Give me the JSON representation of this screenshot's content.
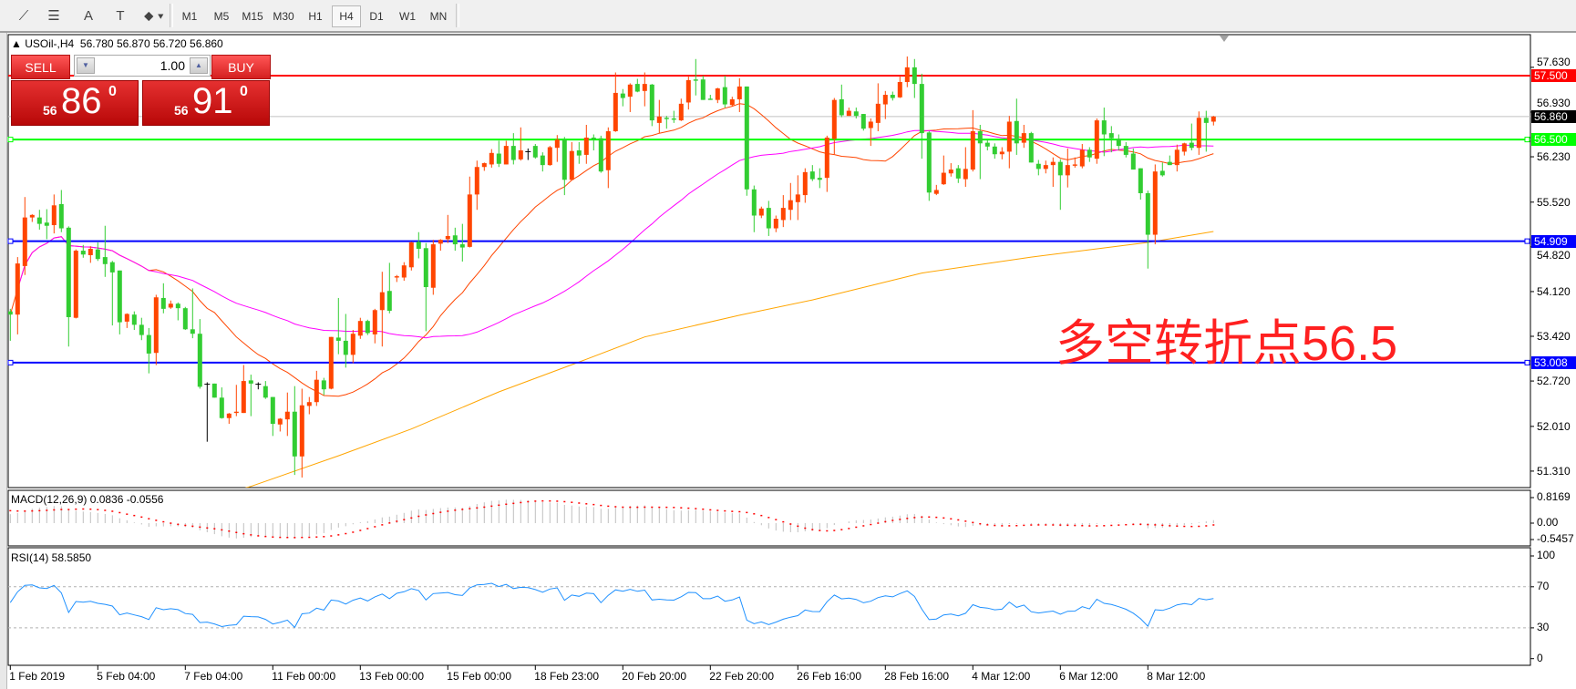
{
  "toolbar": {
    "tools": [
      {
        "icon": "line-studies-icon",
        "glyph": "⟋"
      },
      {
        "icon": "fibonacci-icon",
        "glyph": "☰"
      },
      {
        "icon": "text-icon",
        "glyph": "A"
      },
      {
        "icon": "text-label-icon",
        "glyph": "T"
      },
      {
        "icon": "arrows-icon",
        "glyph": "⬥"
      }
    ],
    "timeframes": [
      "M1",
      "M5",
      "M15",
      "M30",
      "H1",
      "H4",
      "D1",
      "W1",
      "MN"
    ],
    "active_timeframe": "H4"
  },
  "chart": {
    "symbol_header": "USOil-,H4",
    "ohlc_header": "56.780 56.870 56.720 56.860",
    "annotation": "多空转折点56.5",
    "colors": {
      "bull": "#ff4500",
      "bear": "#32cd32",
      "doji": "#000000",
      "ma_fast": "#ff4500",
      "ma_mid": "#ff00ff",
      "ma_slow": "#ffa500",
      "macd_hist": "#c0c0c0",
      "macd_signal": "#ff0000",
      "rsi": "#1e90ff"
    }
  },
  "trade": {
    "sell_label": "SELL",
    "buy_label": "BUY",
    "volume": "1.00",
    "sell_price": {
      "small": "56",
      "big": "86",
      "sup": "0"
    },
    "buy_price": {
      "small": "56",
      "big": "91",
      "sup": "0"
    }
  },
  "chart_data": [
    {
      "type": "candlestick",
      "price_axis_ticks": [
        "57.630",
        "56.930",
        "56.230",
        "55.520",
        "54.820",
        "54.120",
        "53.420",
        "52.720",
        "52.010",
        "51.310"
      ],
      "time_axis_labels": [
        "1 Feb 2019",
        "5 Feb 04:00",
        "7 Feb 04:00",
        "11 Feb 00:00",
        "13 Feb 00:00",
        "15 Feb 00:00",
        "18 Feb 23:00",
        "20 Feb 20:00",
        "22 Feb 20:00",
        "26 Feb 16:00",
        "28 Feb 16:00",
        "4 Mar 12:00",
        "6 Mar 12:00",
        "8 Mar 12:00"
      ],
      "ylim": [
        51.0,
        57.9
      ],
      "current_price": {
        "value": 56.86,
        "label": "56.860",
        "color": "#000000"
      },
      "horizontal_lines": [
        {
          "value": 57.5,
          "label": "57.500",
          "color": "#ff0000"
        },
        {
          "value": 56.5,
          "label": "56.500",
          "color": "#00ff00"
        },
        {
          "value": 54.909,
          "label": "54.909",
          "color": "#0000ff"
        },
        {
          "value": 53.008,
          "label": "53.008",
          "color": "#0000ff"
        }
      ],
      "ma_slow_points": [
        [
          30,
          50.98
        ],
        [
          33,
          51.07
        ],
        [
          45,
          51.55
        ],
        [
          55,
          51.97
        ],
        [
          67,
          52.55
        ],
        [
          79,
          53.06
        ],
        [
          87,
          53.41
        ],
        [
          100,
          53.75
        ],
        [
          110,
          53.99
        ],
        [
          125,
          54.41
        ],
        [
          140,
          54.66
        ],
        [
          156,
          54.89
        ],
        [
          165,
          55.06
        ]
      ],
      "ohlc": [
        [
          53.81,
          53.85,
          53.35,
          53.76
        ],
        [
          53.76,
          54.66,
          53.45,
          54.56
        ],
        [
          54.52,
          55.6,
          54.38,
          55.28
        ],
        [
          55.28,
          55.33,
          55.21,
          55.32
        ],
        [
          55.28,
          55.4,
          55.09,
          55.18
        ],
        [
          55.2,
          55.41,
          54.94,
          55.15
        ],
        [
          55.16,
          55.64,
          55.03,
          55.47
        ],
        [
          55.49,
          55.71,
          55.05,
          55.11
        ],
        [
          55.12,
          55.14,
          53.26,
          53.72
        ],
        [
          53.71,
          54.78,
          53.7,
          54.76
        ],
        [
          54.76,
          54.85,
          54.65,
          54.7
        ],
        [
          54.69,
          54.83,
          54.57,
          54.79
        ],
        [
          54.78,
          54.89,
          54.6,
          54.63
        ],
        [
          54.66,
          55.15,
          54.35,
          54.55
        ],
        [
          54.58,
          54.6,
          53.59,
          54.42
        ],
        [
          54.45,
          54.45,
          53.45,
          53.64
        ],
        [
          53.65,
          53.78,
          53.55,
          53.77
        ],
        [
          53.76,
          53.81,
          53.52,
          53.6
        ],
        [
          53.6,
          53.71,
          53.36,
          53.44
        ],
        [
          53.44,
          53.55,
          52.84,
          53.15
        ],
        [
          53.16,
          54.07,
          52.97,
          54.03
        ],
        [
          54.02,
          54.25,
          53.78,
          53.85
        ],
        [
          53.87,
          53.98,
          53.85,
          53.93
        ],
        [
          53.93,
          53.95,
          53.67,
          53.86
        ],
        [
          53.86,
          53.88,
          53.52,
          53.53
        ],
        [
          53.53,
          54.17,
          53.39,
          53.46
        ],
        [
          53.46,
          53.69,
          52.6,
          52.63
        ],
        [
          52.67,
          52.7,
          51.77,
          52.66
        ],
        [
          52.68,
          52.68,
          52.46,
          52.46
        ],
        [
          52.46,
          52.62,
          52.13,
          52.14
        ],
        [
          52.14,
          52.22,
          52.05,
          52.21
        ],
        [
          52.22,
          52.66,
          52.17,
          52.24
        ],
        [
          52.22,
          52.97,
          52.22,
          52.72
        ],
        [
          52.73,
          52.82,
          52.17,
          52.68
        ],
        [
          52.67,
          52.7,
          52.59,
          52.66
        ],
        [
          52.64,
          52.72,
          52.44,
          52.46
        ],
        [
          52.47,
          52.47,
          51.86,
          52.05
        ],
        [
          52.04,
          52.14,
          51.93,
          52.13
        ],
        [
          52.12,
          52.54,
          51.86,
          52.24
        ],
        [
          52.24,
          52.64,
          51.25,
          51.54
        ],
        [
          51.54,
          52.6,
          51.21,
          52.34
        ],
        [
          52.33,
          52.47,
          52.2,
          52.39
        ],
        [
          52.39,
          52.88,
          52.33,
          52.74
        ],
        [
          52.73,
          52.77,
          52.5,
          52.59
        ],
        [
          52.6,
          53.41,
          52.59,
          53.41
        ],
        [
          53.4,
          54.02,
          53.14,
          53.35
        ],
        [
          53.35,
          53.77,
          52.93,
          53.13
        ],
        [
          53.13,
          53.52,
          53.0,
          53.46
        ],
        [
          53.43,
          53.71,
          53.38,
          53.66
        ],
        [
          53.66,
          53.68,
          53.44,
          53.47
        ],
        [
          53.45,
          53.85,
          53.31,
          53.83
        ],
        [
          53.83,
          54.43,
          53.26,
          54.11
        ],
        [
          54.13,
          54.57,
          53.78,
          53.82
        ],
        [
          54.34,
          54.38,
          54.27,
          54.36
        ],
        [
          54.34,
          54.58,
          54.29,
          54.53
        ],
        [
          54.5,
          54.9,
          54.45,
          54.89
        ],
        [
          54.9,
          55.05,
          54.64,
          54.79
        ],
        [
          54.8,
          54.88,
          53.5,
          54.19
        ],
        [
          54.18,
          54.93,
          54.07,
          54.86
        ],
        [
          54.87,
          54.94,
          54.76,
          54.93
        ],
        [
          54.94,
          55.32,
          54.88,
          54.99
        ],
        [
          55.0,
          55.12,
          54.76,
          54.86
        ],
        [
          54.86,
          55.18,
          54.59,
          54.81
        ],
        [
          54.82,
          55.92,
          54.81,
          55.64
        ],
        [
          55.64,
          56.17,
          55.4,
          56.07
        ],
        [
          56.07,
          56.14,
          56.01,
          56.13
        ],
        [
          56.11,
          56.35,
          56.06,
          56.29
        ],
        [
          56.28,
          56.48,
          56.07,
          56.12
        ],
        [
          56.11,
          56.48,
          56.11,
          56.4
        ],
        [
          56.4,
          56.6,
          56.11,
          56.18
        ],
        [
          56.19,
          56.69,
          56.17,
          56.33
        ],
        [
          56.31,
          56.36,
          56.18,
          56.31
        ],
        [
          56.4,
          56.43,
          56.2,
          56.22
        ],
        [
          56.25,
          56.3,
          56.0,
          56.1
        ],
        [
          56.1,
          56.4,
          56.09,
          56.38
        ],
        [
          56.37,
          56.57,
          56.15,
          56.5
        ],
        [
          56.5,
          56.54,
          55.63,
          55.87
        ],
        [
          55.87,
          56.46,
          55.86,
          56.32
        ],
        [
          56.33,
          56.46,
          56.12,
          56.25
        ],
        [
          56.26,
          56.73,
          56.12,
          56.53
        ],
        [
          56.53,
          56.58,
          56.33,
          56.5
        ],
        [
          56.52,
          56.56,
          55.98,
          56.0
        ],
        [
          56.02,
          56.69,
          55.74,
          56.63
        ],
        [
          56.63,
          57.55,
          56.62,
          57.23
        ],
        [
          57.22,
          57.29,
          57.02,
          57.15
        ],
        [
          57.17,
          57.38,
          56.93,
          57.36
        ],
        [
          57.37,
          57.45,
          57.24,
          57.25
        ],
        [
          57.26,
          57.55,
          57.02,
          57.37
        ],
        [
          57.36,
          57.37,
          56.71,
          56.8
        ],
        [
          56.76,
          57.12,
          56.6,
          56.86
        ],
        [
          56.84,
          56.87,
          56.67,
          56.82
        ],
        [
          56.83,
          56.95,
          56.76,
          56.81
        ],
        [
          56.8,
          57.14,
          56.79,
          57.06
        ],
        [
          57.08,
          57.5,
          56.97,
          57.43
        ],
        [
          57.44,
          57.76,
          57.19,
          57.42
        ],
        [
          57.44,
          57.5,
          57.12,
          57.12
        ],
        [
          57.14,
          57.2,
          57.12,
          57.12
        ],
        [
          57.12,
          57.31,
          57.07,
          57.3
        ],
        [
          57.32,
          57.5,
          57.0,
          57.05
        ],
        [
          57.04,
          57.17,
          57.02,
          57.13
        ],
        [
          57.13,
          57.46,
          56.93,
          57.33
        ],
        [
          57.33,
          57.33,
          55.62,
          55.72
        ],
        [
          55.72,
          55.78,
          55.05,
          55.31
        ],
        [
          55.31,
          55.45,
          55.27,
          55.42
        ],
        [
          55.43,
          55.54,
          54.99,
          55.11
        ],
        [
          55.11,
          55.31,
          55.05,
          55.26
        ],
        [
          55.24,
          55.63,
          55.13,
          55.43
        ],
        [
          55.4,
          55.82,
          55.24,
          55.55
        ],
        [
          55.52,
          55.94,
          55.24,
          55.64
        ],
        [
          55.63,
          56.05,
          55.51,
          55.99
        ],
        [
          56.0,
          56.1,
          55.85,
          55.88
        ],
        [
          55.9,
          56.05,
          55.74,
          55.87
        ],
        [
          55.9,
          56.56,
          55.68,
          56.53
        ],
        [
          56.51,
          57.15,
          56.27,
          57.12
        ],
        [
          57.13,
          57.36,
          56.85,
          56.88
        ],
        [
          56.87,
          57.0,
          56.87,
          56.95
        ],
        [
          56.94,
          57.0,
          56.83,
          56.87
        ],
        [
          56.9,
          56.9,
          56.64,
          56.67
        ],
        [
          56.68,
          56.83,
          56.4,
          56.78
        ],
        [
          56.76,
          57.38,
          56.63,
          57.06
        ],
        [
          57.05,
          57.26,
          56.82,
          57.2
        ],
        [
          57.2,
          57.25,
          57.11,
          57.15
        ],
        [
          57.16,
          57.5,
          57.15,
          57.4
        ],
        [
          57.4,
          57.8,
          57.32,
          57.63
        ],
        [
          57.63,
          57.76,
          57.15,
          57.37
        ],
        [
          57.37,
          57.53,
          56.2,
          56.6
        ],
        [
          56.61,
          56.63,
          55.54,
          55.67
        ],
        [
          55.65,
          55.79,
          55.63,
          55.71
        ],
        [
          55.8,
          56.25,
          55.79,
          55.98
        ],
        [
          55.97,
          56.13,
          55.92,
          56.03
        ],
        [
          56.05,
          56.1,
          55.82,
          55.89
        ],
        [
          55.88,
          56.38,
          55.76,
          56.04
        ],
        [
          56.03,
          56.96,
          56.0,
          56.63
        ],
        [
          56.63,
          56.73,
          55.88,
          56.44
        ],
        [
          56.45,
          56.5,
          56.33,
          56.39
        ],
        [
          56.39,
          56.44,
          56.2,
          56.27
        ],
        [
          56.27,
          56.38,
          56.19,
          56.31
        ],
        [
          56.31,
          56.87,
          56.05,
          56.78
        ],
        [
          56.79,
          57.14,
          56.26,
          56.44
        ],
        [
          56.45,
          56.73,
          56.37,
          56.6
        ],
        [
          56.6,
          56.62,
          56.14,
          56.14
        ],
        [
          56.12,
          56.18,
          55.94,
          56.04
        ],
        [
          56.04,
          56.17,
          55.97,
          56.1
        ],
        [
          56.1,
          56.22,
          55.76,
          56.15
        ],
        [
          56.15,
          56.19,
          55.4,
          55.94
        ],
        [
          55.94,
          56.36,
          55.75,
          56.1
        ],
        [
          56.09,
          56.22,
          56.06,
          56.11
        ],
        [
          56.08,
          56.43,
          56.05,
          56.34
        ],
        [
          56.34,
          56.38,
          56.15,
          56.22
        ],
        [
          56.2,
          56.83,
          56.12,
          56.8
        ],
        [
          56.8,
          57.0,
          56.24,
          56.58
        ],
        [
          56.6,
          56.71,
          56.3,
          56.52
        ],
        [
          56.51,
          56.58,
          56.33,
          56.4
        ],
        [
          56.4,
          56.46,
          56.22,
          56.26
        ],
        [
          56.28,
          56.36,
          56.03,
          56.03
        ],
        [
          56.05,
          56.05,
          55.56,
          55.66
        ],
        [
          55.66,
          55.7,
          54.48,
          55.01
        ],
        [
          55.01,
          56.11,
          54.86,
          56.0
        ],
        [
          56.01,
          56.14,
          55.92,
          55.94
        ],
        [
          56.15,
          56.25,
          56.1,
          56.1
        ],
        [
          56.1,
          56.42,
          56.0,
          56.34
        ],
        [
          56.31,
          56.45,
          56.25,
          56.44
        ],
        [
          56.45,
          56.75,
          56.33,
          56.37
        ],
        [
          56.37,
          56.94,
          56.26,
          56.84
        ],
        [
          56.84,
          56.95,
          56.31,
          56.76
        ],
        [
          56.78,
          56.87,
          56.72,
          56.86
        ]
      ]
    },
    {
      "type": "bar",
      "title": "MACD(12,26,9) 0.0836 -0.0556",
      "axis_ticks": [
        "0.8169",
        "0.00",
        "-0.5457"
      ],
      "ylim": [
        -0.5457,
        0.8169
      ]
    },
    {
      "type": "line",
      "title": "RSI(14) 58.5850",
      "axis_ticks": [
        "100",
        "70",
        "30",
        "0"
      ],
      "levels": [
        70,
        30
      ],
      "ylim": [
        0,
        100
      ]
    }
  ]
}
